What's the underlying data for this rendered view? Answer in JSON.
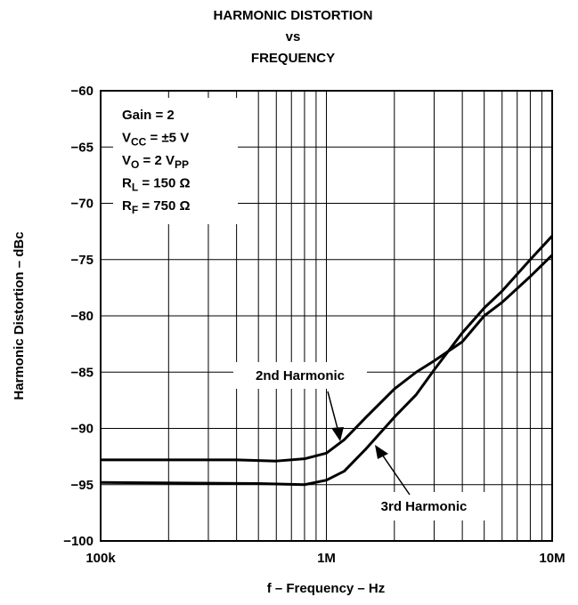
{
  "chart_data": {
    "type": "line",
    "title": [
      "HARMONIC DISTORTION",
      "vs",
      "FREQUENCY"
    ],
    "xlabel": "f – Frequency – Hz",
    "ylabel": "Harmonic Distortion – dBc",
    "xscale": "log",
    "xlim": [
      100000,
      10000000
    ],
    "ylim": [
      -100,
      -60
    ],
    "xticks": [
      {
        "value": 100000,
        "label": "100k"
      },
      {
        "value": 1000000,
        "label": "1M"
      },
      {
        "value": 10000000,
        "label": "10M"
      }
    ],
    "xminorticks": [
      200000,
      300000,
      400000,
      500000,
      600000,
      700000,
      800000,
      900000,
      2000000,
      3000000,
      4000000,
      5000000,
      6000000,
      7000000,
      8000000,
      9000000
    ],
    "yticks": [
      {
        "value": -100,
        "label": "−100"
      },
      {
        "value": -95,
        "label": "−95"
      },
      {
        "value": -90,
        "label": "−90"
      },
      {
        "value": -85,
        "label": "−85"
      },
      {
        "value": -80,
        "label": "−80"
      },
      {
        "value": -75,
        "label": "−75"
      },
      {
        "value": -70,
        "label": "−70"
      },
      {
        "value": -65,
        "label": "−65"
      },
      {
        "value": -60,
        "label": "−60"
      }
    ],
    "grid": true,
    "conditions": [
      [
        {
          "text": "Gain = 2"
        }
      ],
      [
        {
          "text": "V"
        },
        {
          "text": "CC",
          "sub": true
        },
        {
          "text": " = ±5 V"
        }
      ],
      [
        {
          "text": "V"
        },
        {
          "text": "O",
          "sub": true
        },
        {
          "text": " = 2 V"
        },
        {
          "text": "PP",
          "sub": true
        }
      ],
      [
        {
          "text": "R"
        },
        {
          "text": "L",
          "sub": true
        },
        {
          "text": " = 150 Ω"
        }
      ],
      [
        {
          "text": "R"
        },
        {
          "text": "F",
          "sub": true
        },
        {
          "text": " = 750 Ω"
        }
      ]
    ],
    "series": [
      {
        "name": "2nd Harmonic",
        "color": "#000000",
        "x": [
          100000,
          200000,
          400000,
          600000,
          800000,
          1000000,
          1200000,
          1500000,
          2000000,
          2500000,
          3000000,
          4000000,
          5000000,
          6000000,
          8000000,
          10000000
        ],
        "values": [
          -92.8,
          -92.8,
          -92.8,
          -92.9,
          -92.7,
          -92.2,
          -91,
          -89,
          -86.5,
          -85,
          -84,
          -82.3,
          -80,
          -78.8,
          -76.5,
          -74.6
        ]
      },
      {
        "name": "3rd Harmonic",
        "color": "#000000",
        "x": [
          100000,
          500000,
          800000,
          1000000,
          1200000,
          1500000,
          2000000,
          2500000,
          3000000,
          4000000,
          5000000,
          6000000,
          8000000,
          10000000
        ],
        "values": [
          -94.8,
          -94.9,
          -95,
          -94.6,
          -93.8,
          -91.8,
          -89,
          -87,
          -84.8,
          -81.5,
          -79.3,
          -77.8,
          -75,
          -72.9
        ]
      }
    ]
  }
}
